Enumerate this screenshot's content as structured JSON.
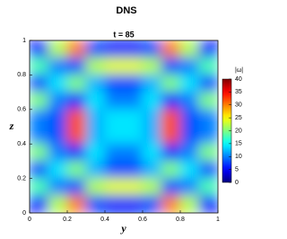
{
  "chart_data": {
    "type": "heatmap",
    "title": "DNS",
    "subtitle": "t = 85",
    "xlabel": "y",
    "ylabel": "z",
    "colorbar_label": "|ω|",
    "x": [
      0.05,
      0.15,
      0.25,
      0.35,
      0.45,
      0.55,
      0.65,
      0.75,
      0.85,
      0.95
    ],
    "y": [
      0.95,
      0.85,
      0.75,
      0.65,
      0.55,
      0.45,
      0.35,
      0.25,
      0.15,
      0.05
    ],
    "z": [
      [
        6,
        22,
        30,
        8,
        6,
        6,
        8,
        30,
        22,
        6
      ],
      [
        18,
        10,
        8,
        22,
        24,
        24,
        22,
        8,
        10,
        18
      ],
      [
        8,
        14,
        20,
        12,
        8,
        8,
        12,
        20,
        14,
        8
      ],
      [
        20,
        10,
        6,
        14,
        10,
        10,
        14,
        6,
        10,
        20
      ],
      [
        10,
        8,
        32,
        12,
        14,
        14,
        12,
        32,
        8,
        10
      ],
      [
        10,
        8,
        32,
        12,
        14,
        14,
        12,
        32,
        8,
        10
      ],
      [
        20,
        10,
        6,
        14,
        10,
        10,
        14,
        6,
        10,
        20
      ],
      [
        8,
        14,
        20,
        12,
        8,
        8,
        12,
        20,
        14,
        8
      ],
      [
        18,
        10,
        8,
        22,
        24,
        24,
        22,
        8,
        10,
        18
      ],
      [
        6,
        22,
        30,
        8,
        6,
        6,
        8,
        30,
        22,
        6
      ]
    ],
    "xlim": [
      0,
      1
    ],
    "ylim": [
      0,
      1
    ],
    "xticks": [
      0,
      0.2,
      0.4,
      0.6,
      0.8,
      1
    ],
    "yticks": [
      0,
      0.2,
      0.4,
      0.6,
      0.8,
      1
    ],
    "clim": [
      0,
      40
    ],
    "cticks": [
      0,
      5,
      10,
      15,
      20,
      25,
      30,
      35,
      40
    ],
    "colormap": "jet"
  }
}
